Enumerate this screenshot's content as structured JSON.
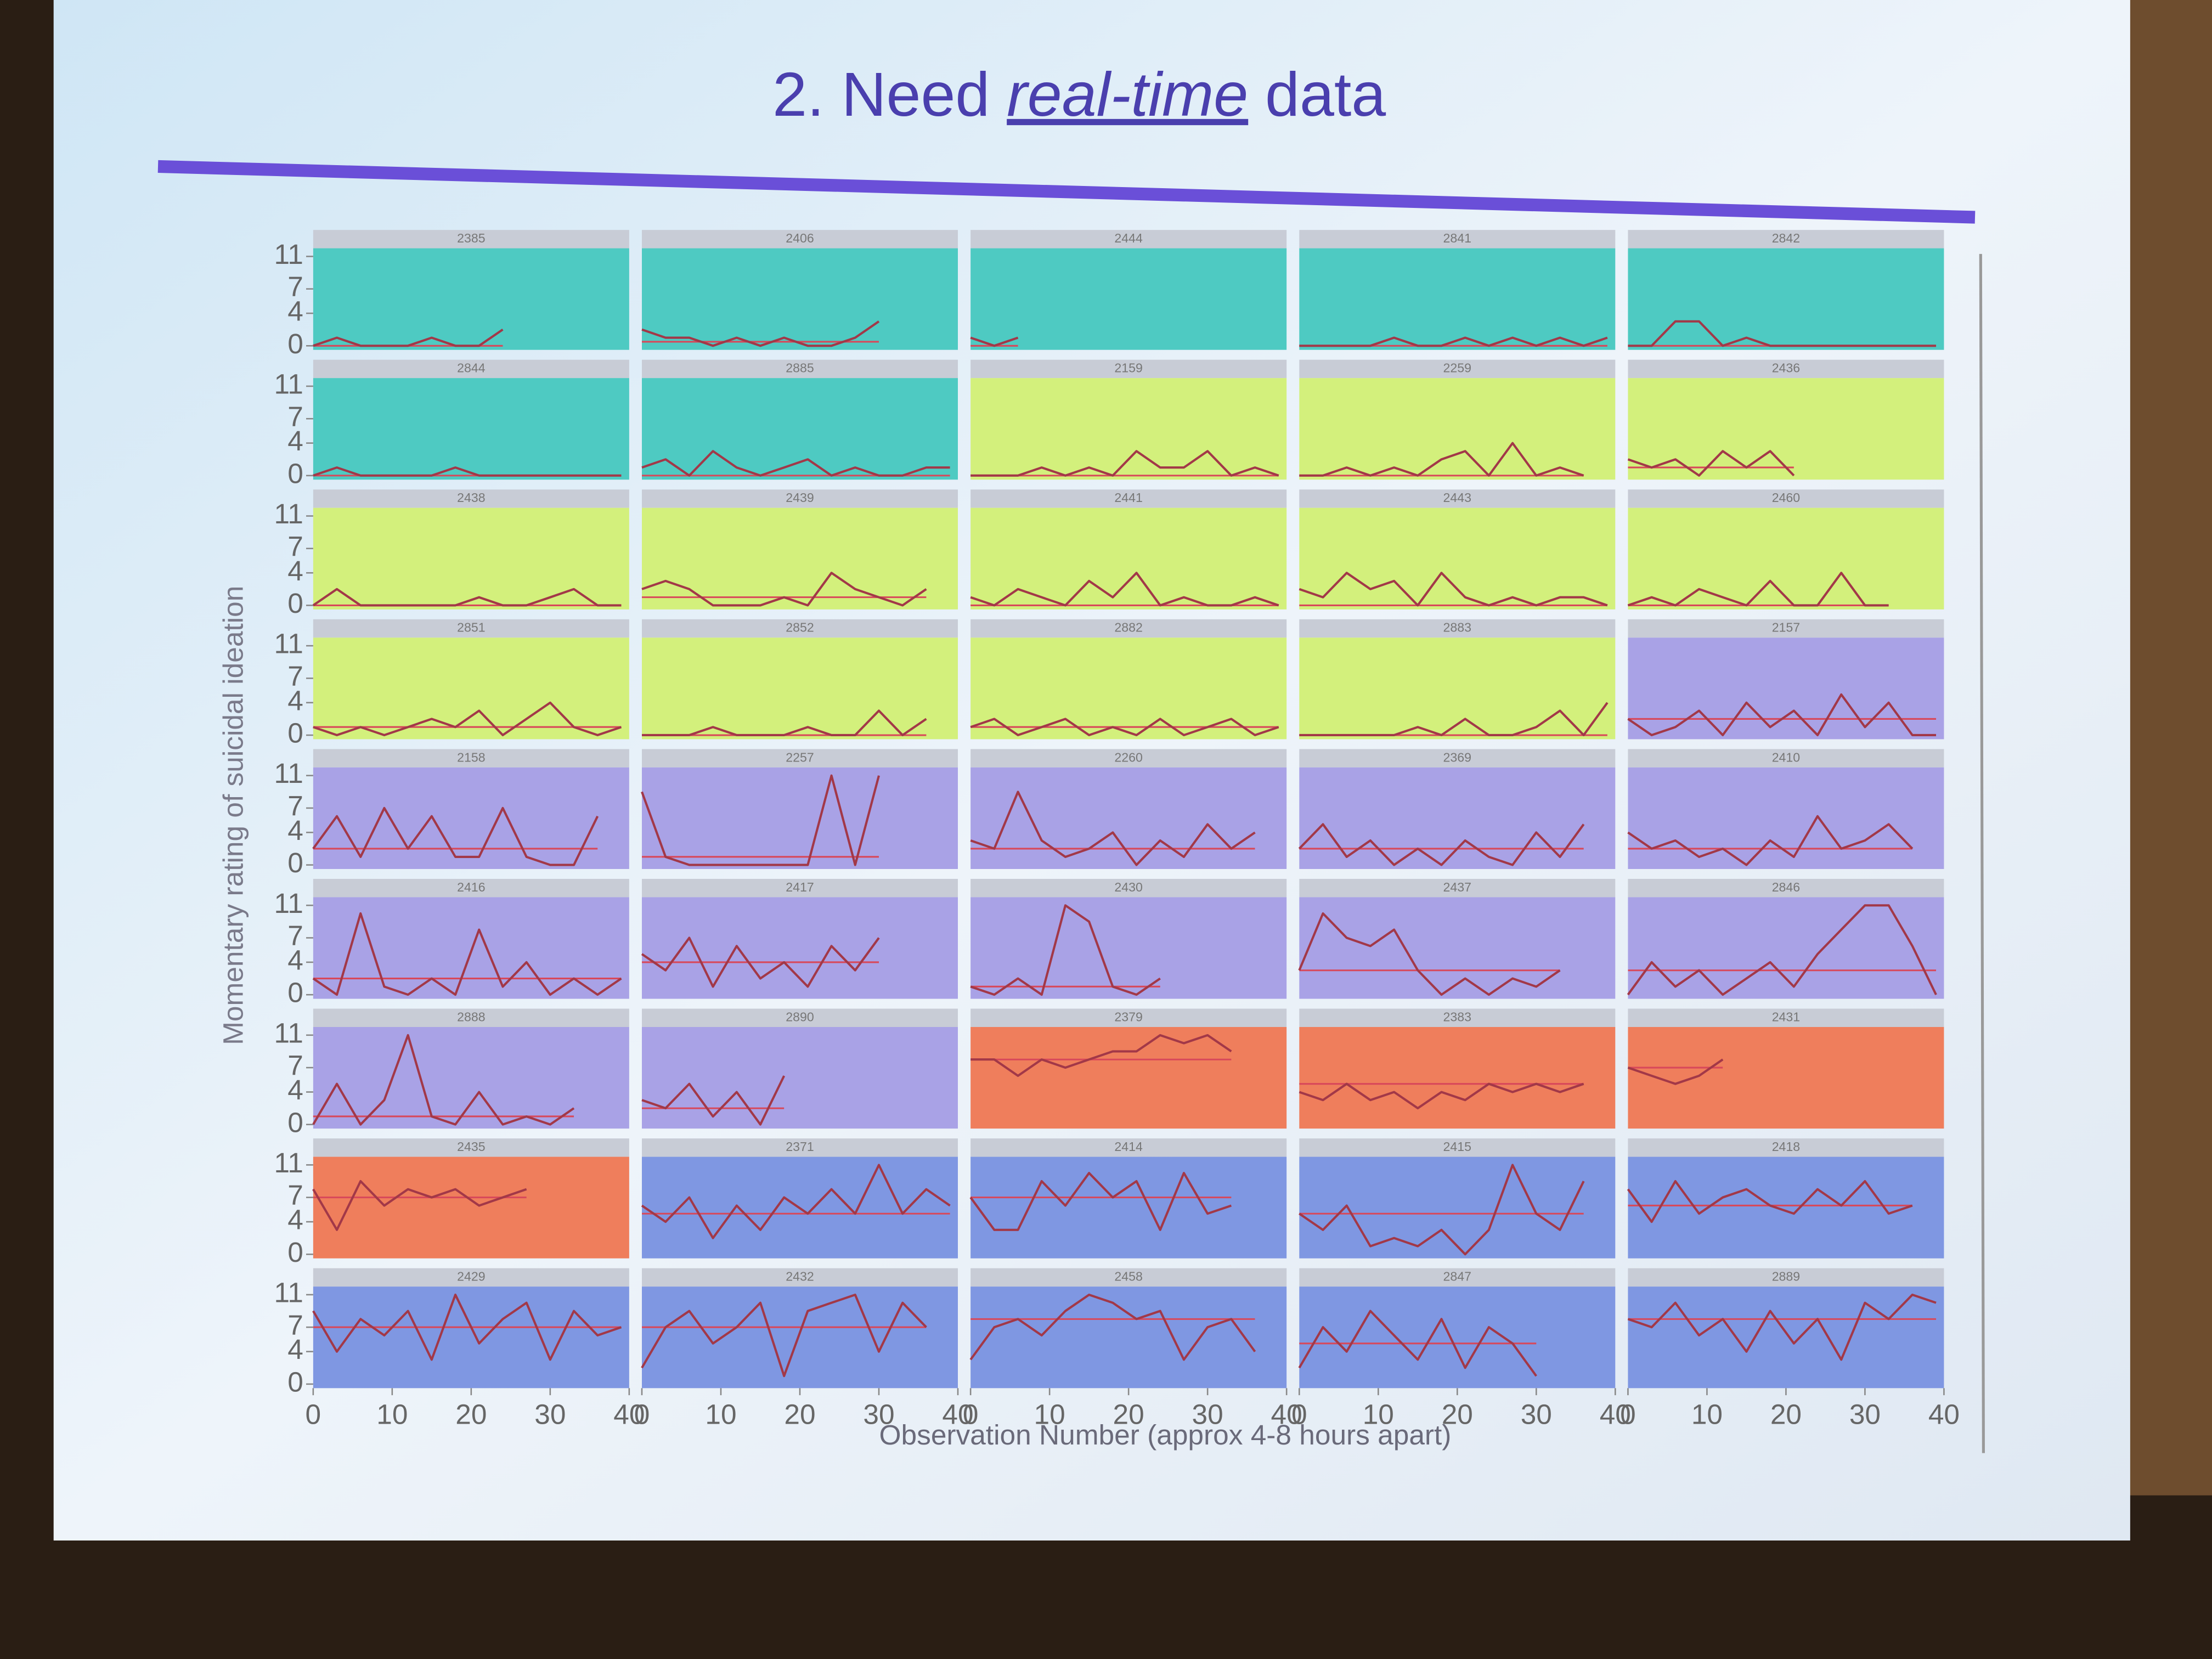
{
  "slide": {
    "title": {
      "prefix": "2. Need",
      "emphasis": "real-time",
      "suffix": "data"
    }
  },
  "chart_data": {
    "type": "line",
    "xlabel": "Observation Number (approx 4-8 hours apart)",
    "ylabel": "Momentary rating of suicidal ideation",
    "xlim": [
      0,
      40
    ],
    "xticks": [
      0,
      10,
      20,
      30,
      40
    ],
    "ylim": [
      -0.5,
      12
    ],
    "yticks": [
      0,
      4,
      7,
      11
    ],
    "x": [
      0,
      3,
      6,
      9,
      12,
      15,
      18,
      21,
      24,
      27,
      30,
      33,
      36,
      39
    ],
    "line_color": "#a23848",
    "mean_color": "#d8485a",
    "columns": 5,
    "panels": [
      {
        "title": "2385",
        "color": "#4ecac2",
        "mean": 0,
        "values": [
          0,
          1,
          0,
          0,
          0,
          1,
          0,
          0,
          2,
          null,
          null,
          null,
          null,
          null
        ]
      },
      {
        "title": "2406",
        "color": "#4ecac2",
        "mean": 0.5,
        "values": [
          2,
          1,
          1,
          0,
          1,
          0,
          1,
          0,
          0,
          1,
          3,
          null,
          null,
          null
        ]
      },
      {
        "title": "2444",
        "color": "#4ecac2",
        "mean": 0,
        "values": [
          1,
          0,
          1,
          null,
          null,
          null,
          null,
          null,
          null,
          null,
          null,
          null,
          null,
          null
        ]
      },
      {
        "title": "2841",
        "color": "#4ecac2",
        "mean": 0,
        "values": [
          0,
          0,
          0,
          0,
          1,
          0,
          0,
          1,
          0,
          1,
          0,
          1,
          0,
          1
        ]
      },
      {
        "title": "2842",
        "color": "#4ecac2",
        "mean": 0,
        "values": [
          0,
          0,
          3,
          3,
          0,
          1,
          0,
          0,
          0,
          0,
          0,
          0,
          0,
          0
        ]
      },
      {
        "title": "2844",
        "color": "#4ecac2",
        "mean": 0,
        "values": [
          0,
          1,
          0,
          0,
          0,
          0,
          1,
          0,
          0,
          0,
          0,
          0,
          0,
          0
        ]
      },
      {
        "title": "2885",
        "color": "#4ecac2",
        "mean": 0,
        "values": [
          1,
          2,
          0,
          3,
          1,
          0,
          1,
          2,
          0,
          1,
          0,
          0,
          1,
          1
        ]
      },
      {
        "title": "2159",
        "color": "#d3f07c",
        "mean": 0,
        "values": [
          0,
          0,
          0,
          1,
          0,
          1,
          0,
          3,
          1,
          1,
          3,
          0,
          1,
          0
        ]
      },
      {
        "title": "2259",
        "color": "#d3f07c",
        "mean": 0,
        "values": [
          0,
          0,
          1,
          0,
          1,
          0,
          2,
          3,
          0,
          4,
          0,
          1,
          0,
          null
        ]
      },
      {
        "title": "2436",
        "color": "#d3f07c",
        "mean": 1,
        "values": [
          2,
          1,
          2,
          0,
          3,
          1,
          3,
          0,
          null,
          null,
          null,
          null,
          null,
          null
        ]
      },
      {
        "title": "2438",
        "color": "#d3f07c",
        "mean": 0,
        "values": [
          0,
          2,
          0,
          0,
          0,
          0,
          0,
          1,
          0,
          0,
          1,
          2,
          0,
          0
        ]
      },
      {
        "title": "2439",
        "color": "#d3f07c",
        "mean": 1,
        "values": [
          2,
          3,
          2,
          0,
          0,
          0,
          1,
          0,
          4,
          2,
          1,
          0,
          2,
          null
        ]
      },
      {
        "title": "2441",
        "color": "#d3f07c",
        "mean": 0,
        "values": [
          1,
          0,
          2,
          1,
          0,
          3,
          1,
          4,
          0,
          1,
          0,
          0,
          1,
          0
        ]
      },
      {
        "title": "2443",
        "color": "#d3f07c",
        "mean": 0,
        "values": [
          2,
          1,
          4,
          2,
          3,
          0,
          4,
          1,
          0,
          1,
          0,
          1,
          1,
          0
        ]
      },
      {
        "title": "2460",
        "color": "#d3f07c",
        "mean": 0,
        "values": [
          0,
          1,
          0,
          2,
          1,
          0,
          3,
          0,
          0,
          4,
          0,
          0,
          null,
          null
        ]
      },
      {
        "title": "2851",
        "color": "#d3f07c",
        "mean": 1,
        "values": [
          1,
          0,
          1,
          0,
          1,
          2,
          1,
          3,
          0,
          2,
          4,
          1,
          0,
          1
        ]
      },
      {
        "title": "2852",
        "color": "#d3f07c",
        "mean": 0,
        "values": [
          0,
          0,
          0,
          1,
          0,
          0,
          0,
          1,
          0,
          0,
          3,
          0,
          2,
          null
        ]
      },
      {
        "title": "2882",
        "color": "#d3f07c",
        "mean": 1,
        "values": [
          1,
          2,
          0,
          1,
          2,
          0,
          1,
          0,
          2,
          0,
          1,
          2,
          0,
          1
        ]
      },
      {
        "title": "2883",
        "color": "#d3f07c",
        "mean": 0,
        "values": [
          0,
          0,
          0,
          0,
          0,
          1,
          0,
          2,
          0,
          0,
          1,
          3,
          0,
          4
        ]
      },
      {
        "title": "2157",
        "color": "#a9a2e6",
        "mean": 2,
        "values": [
          2,
          0,
          1,
          3,
          0,
          4,
          1,
          3,
          0,
          5,
          1,
          4,
          0,
          0
        ]
      },
      {
        "title": "2158",
        "color": "#a9a2e6",
        "mean": 2,
        "values": [
          2,
          6,
          1,
          7,
          2,
          6,
          1,
          1,
          7,
          1,
          0,
          0,
          6,
          null
        ]
      },
      {
        "title": "2257",
        "color": "#a9a2e6",
        "mean": 1,
        "values": [
          9,
          1,
          0,
          0,
          0,
          0,
          0,
          0,
          11,
          0,
          11,
          null,
          null,
          null
        ]
      },
      {
        "title": "2260",
        "color": "#a9a2e6",
        "mean": 2,
        "values": [
          3,
          2,
          9,
          3,
          1,
          2,
          4,
          0,
          3,
          1,
          5,
          2,
          4,
          null
        ]
      },
      {
        "title": "2369",
        "color": "#a9a2e6",
        "mean": 2,
        "values": [
          2,
          5,
          1,
          3,
          0,
          2,
          0,
          3,
          1,
          0,
          4,
          1,
          5,
          null
        ]
      },
      {
        "title": "2410",
        "color": "#a9a2e6",
        "mean": 2,
        "values": [
          4,
          2,
          3,
          1,
          2,
          0,
          3,
          1,
          6,
          2,
          3,
          5,
          2,
          null
        ]
      },
      {
        "title": "2416",
        "color": "#a9a2e6",
        "mean": 2,
        "values": [
          2,
          0,
          10,
          1,
          0,
          2,
          0,
          8,
          1,
          4,
          0,
          2,
          0,
          2
        ]
      },
      {
        "title": "2417",
        "color": "#a9a2e6",
        "mean": 4,
        "values": [
          5,
          3,
          7,
          1,
          6,
          2,
          4,
          1,
          6,
          3,
          7,
          null,
          null,
          null
        ]
      },
      {
        "title": "2430",
        "color": "#a9a2e6",
        "mean": 1,
        "values": [
          1,
          0,
          2,
          0,
          11,
          9,
          1,
          0,
          2,
          null,
          null,
          null,
          null,
          null
        ]
      },
      {
        "title": "2437",
        "color": "#a9a2e6",
        "mean": 3,
        "values": [
          3,
          10,
          7,
          6,
          8,
          3,
          0,
          2,
          0,
          2,
          1,
          3,
          null,
          null
        ]
      },
      {
        "title": "2846",
        "color": "#a9a2e6",
        "mean": 3,
        "values": [
          0,
          4,
          1,
          3,
          0,
          2,
          4,
          1,
          5,
          8,
          11,
          11,
          6,
          0
        ]
      },
      {
        "title": "2888",
        "color": "#a9a2e6",
        "mean": 1,
        "values": [
          0,
          5,
          0,
          3,
          11,
          1,
          0,
          4,
          0,
          1,
          0,
          2,
          null,
          null
        ]
      },
      {
        "title": "2890",
        "color": "#a9a2e6",
        "mean": 2,
        "values": [
          3,
          2,
          5,
          1,
          4,
          0,
          6,
          null,
          null,
          null,
          null,
          null,
          null,
          null
        ]
      },
      {
        "title": "2379",
        "color": "#ef7e5c",
        "mean": 8,
        "values": [
          8,
          8,
          6,
          8,
          7,
          8,
          9,
          9,
          11,
          10,
          11,
          9,
          null,
          null
        ]
      },
      {
        "title": "2383",
        "color": "#ef7e5c",
        "mean": 5,
        "values": [
          4,
          3,
          5,
          3,
          4,
          2,
          4,
          3,
          5,
          4,
          5,
          4,
          5,
          null
        ]
      },
      {
        "title": "2431",
        "color": "#ef7e5c",
        "mean": 7,
        "values": [
          7,
          6,
          5,
          6,
          8,
          null,
          null,
          null,
          null,
          null,
          null,
          null,
          null,
          null
        ]
      },
      {
        "title": "2435",
        "color": "#ef7e5c",
        "mean": 7,
        "values": [
          8,
          3,
          9,
          6,
          8,
          7,
          8,
          6,
          7,
          8,
          null,
          null,
          null,
          null
        ]
      },
      {
        "title": "2371",
        "color": "#7f97e2",
        "mean": 5,
        "values": [
          6,
          4,
          7,
          2,
          6,
          3,
          7,
          5,
          8,
          5,
          11,
          5,
          8,
          6
        ]
      },
      {
        "title": "2414",
        "color": "#7f97e2",
        "mean": 7,
        "values": [
          7,
          3,
          3,
          9,
          6,
          10,
          7,
          9,
          3,
          10,
          5,
          6,
          null,
          null
        ]
      },
      {
        "title": "2415",
        "color": "#7f97e2",
        "mean": 5,
        "values": [
          5,
          3,
          6,
          1,
          2,
          1,
          3,
          0,
          3,
          11,
          5,
          3,
          9,
          null
        ]
      },
      {
        "title": "2418",
        "color": "#7f97e2",
        "mean": 6,
        "values": [
          8,
          4,
          9,
          5,
          7,
          8,
          6,
          5,
          8,
          6,
          9,
          5,
          6,
          null
        ]
      },
      {
        "title": "2429",
        "color": "#7f97e2",
        "mean": 7,
        "values": [
          9,
          4,
          8,
          6,
          9,
          3,
          11,
          5,
          8,
          10,
          3,
          9,
          6,
          7
        ]
      },
      {
        "title": "2432",
        "color": "#7f97e2",
        "mean": 7,
        "values": [
          2,
          7,
          9,
          5,
          7,
          10,
          1,
          9,
          10,
          11,
          4,
          10,
          7,
          null
        ]
      },
      {
        "title": "2458",
        "color": "#7f97e2",
        "mean": 8,
        "values": [
          3,
          7,
          8,
          6,
          9,
          11,
          10,
          8,
          9,
          3,
          7,
          8,
          4,
          null
        ]
      },
      {
        "title": "2847",
        "color": "#7f97e2",
        "mean": 5,
        "values": [
          2,
          7,
          4,
          9,
          6,
          3,
          8,
          2,
          7,
          5,
          1,
          null,
          null,
          null
        ]
      },
      {
        "title": "2889",
        "color": "#7f97e2",
        "mean": 8,
        "values": [
          8,
          7,
          10,
          6,
          8,
          4,
          9,
          5,
          8,
          3,
          10,
          8,
          11,
          10
        ]
      }
    ]
  }
}
